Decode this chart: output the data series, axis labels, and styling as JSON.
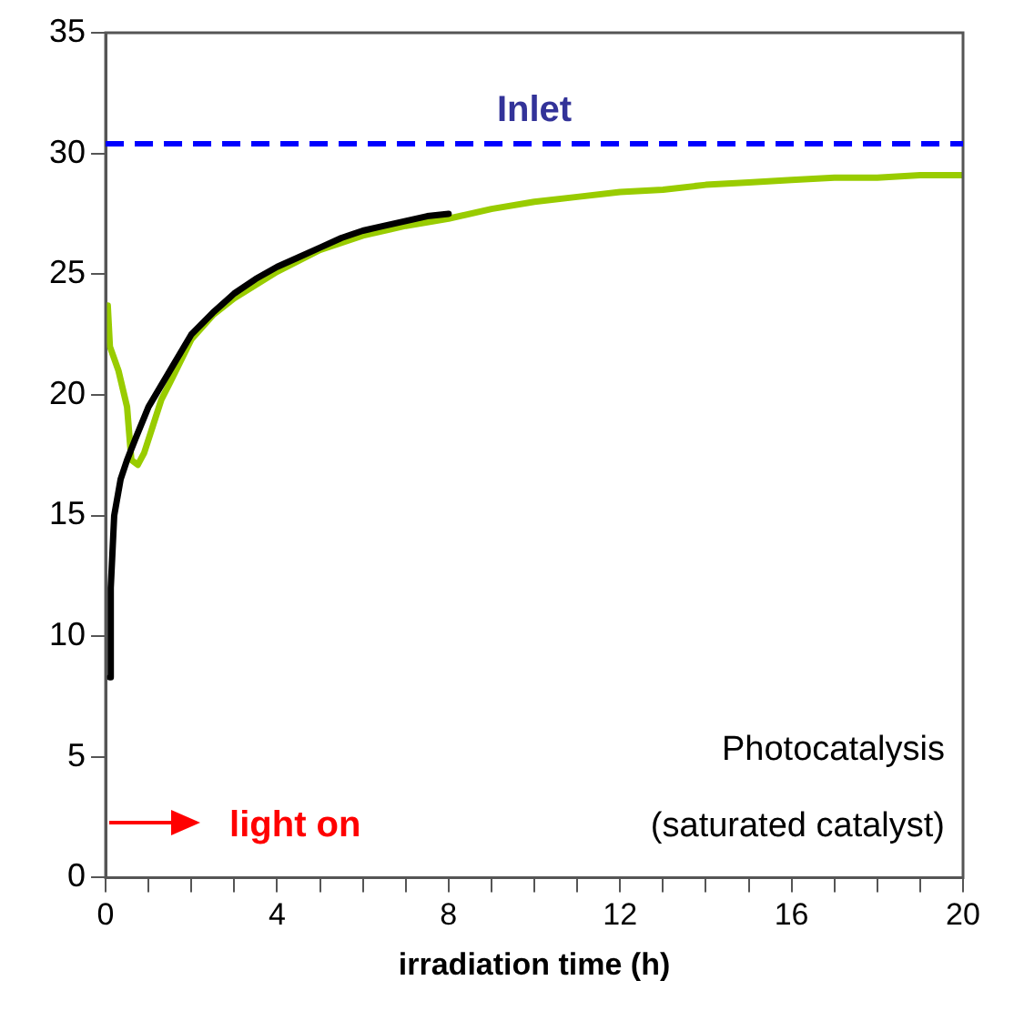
{
  "chart_data": {
    "type": "line",
    "xlabel": "irradiation time (h)",
    "xlim": [
      0,
      20
    ],
    "xticks": [
      0,
      {
        "value": 1,
        "label": null
      },
      {
        "value": 2,
        "label": null
      },
      {
        "value": 3,
        "label": null
      },
      4,
      {
        "value": 5,
        "label": null
      },
      {
        "value": 6,
        "label": null
      },
      {
        "value": 7,
        "label": null
      },
      8,
      {
        "value": 9,
        "label": null
      },
      {
        "value": 10,
        "label": null
      },
      {
        "value": 11,
        "label": null
      },
      12,
      {
        "value": 13,
        "label": null
      },
      {
        "value": 14,
        "label": null
      },
      {
        "value": 15,
        "label": null
      },
      16,
      {
        "value": 17,
        "label": null
      },
      {
        "value": 18,
        "label": null
      },
      {
        "value": 19,
        "label": null
      },
      20
    ],
    "ylim": [
      0,
      35
    ],
    "yticks": [
      0,
      5,
      10,
      15,
      20,
      25,
      30,
      35
    ],
    "grid": false,
    "legend": false,
    "marker": "none",
    "line_style": "solid",
    "series": [
      {
        "color": "#000000",
        "x": [
          0.1,
          0.12,
          0.2,
          0.35,
          0.5,
          0.7,
          1,
          1.5,
          2,
          2.5,
          3,
          3.5,
          4,
          4.5,
          5,
          5.5,
          6,
          6.5,
          7,
          7.5,
          8
        ],
        "values": [
          8.3,
          12,
          15,
          16.5,
          17.3,
          18.2,
          19.5,
          21,
          22.5,
          23.4,
          24.2,
          24.8,
          25.3,
          25.7,
          26.1,
          26.5,
          26.8,
          27,
          27.2,
          27.4,
          27.5
        ]
      },
      {
        "color": "#99cc00",
        "x": [
          0.05,
          0.1,
          0.3,
          0.5,
          0.6,
          0.75,
          0.9,
          1.1,
          1.3,
          1.5,
          2,
          2.5,
          3,
          4,
          5,
          6,
          7,
          8,
          9,
          10,
          11,
          12,
          13,
          14,
          15,
          16,
          17,
          18,
          19,
          20
        ],
        "values": [
          23.7,
          22,
          21,
          19.5,
          17.3,
          17.1,
          17.6,
          18.7,
          19.8,
          20.5,
          22.3,
          23.3,
          24,
          25.1,
          26,
          26.6,
          27,
          27.3,
          27.7,
          28,
          28.2,
          28.4,
          28.5,
          28.7,
          28.8,
          28.9,
          29,
          29,
          29.1,
          29.1
        ]
      }
    ],
    "ref_lines": [
      {
        "axis": "y",
        "value": 30.4,
        "label": "Inlet",
        "color": "#0000ff",
        "line_style": "dashed"
      }
    ],
    "annotations": [
      "Photocatalysis",
      "(saturated catalyst)",
      "light on"
    ]
  }
}
